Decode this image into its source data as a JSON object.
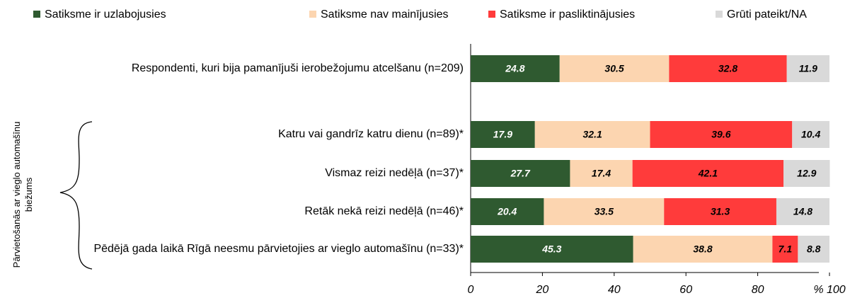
{
  "chart_data": {
    "type": "stacked-barh",
    "group_label": "Pārvietošanās ar vieglo automašīnu biežums",
    "categories": [
      "Respondenti, kuri bija pamanījuši ierobežojumu atcelšanu (n=209)",
      "Katru vai gandrīz katru dienu (n=89)*",
      "Vismaz reizi nedēļā (n=37)*",
      "Retāk nekā reizi nedēļā (n=46)*",
      "Pēdējā gada laikā Rīgā neesmu pārvietojies ar vieglo automašīnu (n=33)*"
    ],
    "series": [
      {
        "name": "Satiksme ir uzlabojusies",
        "color": "#2f5a30",
        "label_color": "#ffffff",
        "values": [
          24.8,
          17.9,
          27.7,
          20.4,
          45.3
        ]
      },
      {
        "name": "Satiksme nav mainījusies",
        "color": "#fcd5b0",
        "label_color": "#000000",
        "values": [
          30.5,
          32.1,
          17.4,
          33.5,
          38.8
        ]
      },
      {
        "name": "Satiksme ir pasliktinājusies",
        "color": "#ff3b3b",
        "label_color": "#000000",
        "values": [
          32.8,
          39.6,
          42.1,
          31.3,
          7.1
        ]
      },
      {
        "name": "Grūti pateikt/NA",
        "color": "#d9d9d9",
        "label_color": "#000000",
        "values": [
          11.9,
          10.4,
          12.9,
          14.8,
          8.8
        ]
      }
    ],
    "xlim": [
      0,
      100
    ],
    "xticks": [
      0,
      20,
      40,
      60,
      80,
      {
        "value": 100,
        "label": "% 100"
      }
    ]
  }
}
